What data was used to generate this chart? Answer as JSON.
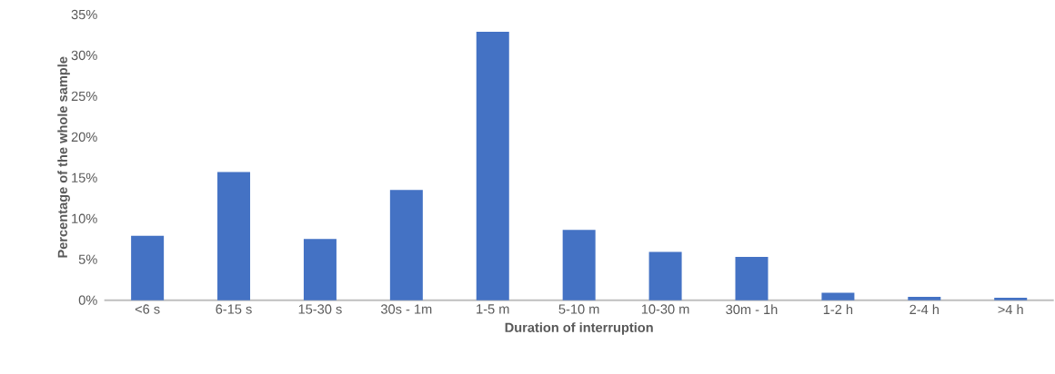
{
  "chart_data": {
    "type": "bar",
    "xlabel": "Duration of interruption",
    "ylabel": "Percentage of the whole sample",
    "categories": [
      "<6 s",
      "6-15 s",
      "15-30 s",
      "30s - 1m",
      "1-5 m",
      "5-10 m",
      "10-30 m",
      "30m - 1h",
      "1-2 h",
      "2-4 h",
      ">4 h"
    ],
    "values": [
      7.9,
      15.7,
      7.5,
      13.5,
      32.9,
      8.6,
      5.9,
      5.3,
      0.9,
      0.4,
      0.3
    ],
    "color": "#4472c4",
    "ylim": [
      0,
      35
    ],
    "yticks": [
      {
        "value": 0,
        "label": "0%"
      },
      {
        "value": 5,
        "label": "5%"
      },
      {
        "value": 10,
        "label": "10%"
      },
      {
        "value": 15,
        "label": "15%"
      },
      {
        "value": 20,
        "label": "20%"
      },
      {
        "value": 25,
        "label": "25%"
      },
      {
        "value": 30,
        "label": "30%"
      },
      {
        "value": 35,
        "label": "35%"
      }
    ]
  }
}
